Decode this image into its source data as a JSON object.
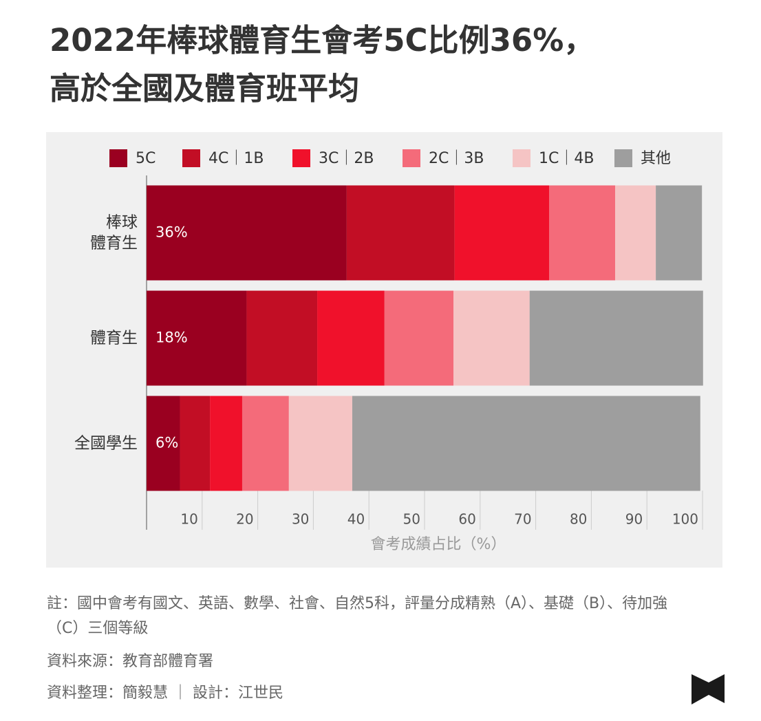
{
  "chart_data": {
    "type": "stacked-barh",
    "title": "2022年棒球體育生會考5C比例36%，\n高於全國及體育班平均",
    "categories": [
      "棒球\n體育生",
      "體育生",
      "全國學生"
    ],
    "series": [
      {
        "name": "5C",
        "color": "#9a0020",
        "values": [
          36,
          18,
          6
        ],
        "value_labels": [
          "36%",
          "18%",
          "6%"
        ]
      },
      {
        "name": "4C｜1B",
        "color": "#c20e25",
        "values": [
          19.4,
          12.7,
          5.4
        ]
      },
      {
        "name": "3C｜2B",
        "color": "#f0112b",
        "values": [
          17.0,
          12.1,
          5.8
        ]
      },
      {
        "name": "2C｜3B",
        "color": "#f46b7a",
        "values": [
          11.9,
          12.4,
          8.4
        ]
      },
      {
        "name": "1C｜4B",
        "color": "#f5c4c4",
        "values": [
          7.3,
          13.7,
          11.4
        ]
      },
      {
        "name": "其他",
        "color": "#9e9e9e",
        "values": [
          8.3,
          31.2,
          62.6
        ]
      }
    ],
    "xlim": [
      0,
      100
    ],
    "xticks": [
      10,
      20,
      30,
      40,
      50,
      60,
      70,
      80,
      90,
      100
    ],
    "xlabel": "會考成績占比（%）",
    "legend": "top"
  },
  "notes": {
    "note": "註：國中會考有國文、英語、數學、社會、自然5科，評量分成精熟（A）、基礎（B）、待加強（C）三個等級",
    "source": "資料來源：教育部體育署",
    "credits": "資料整理：簡毅慧 ｜ 設計：江世民"
  }
}
